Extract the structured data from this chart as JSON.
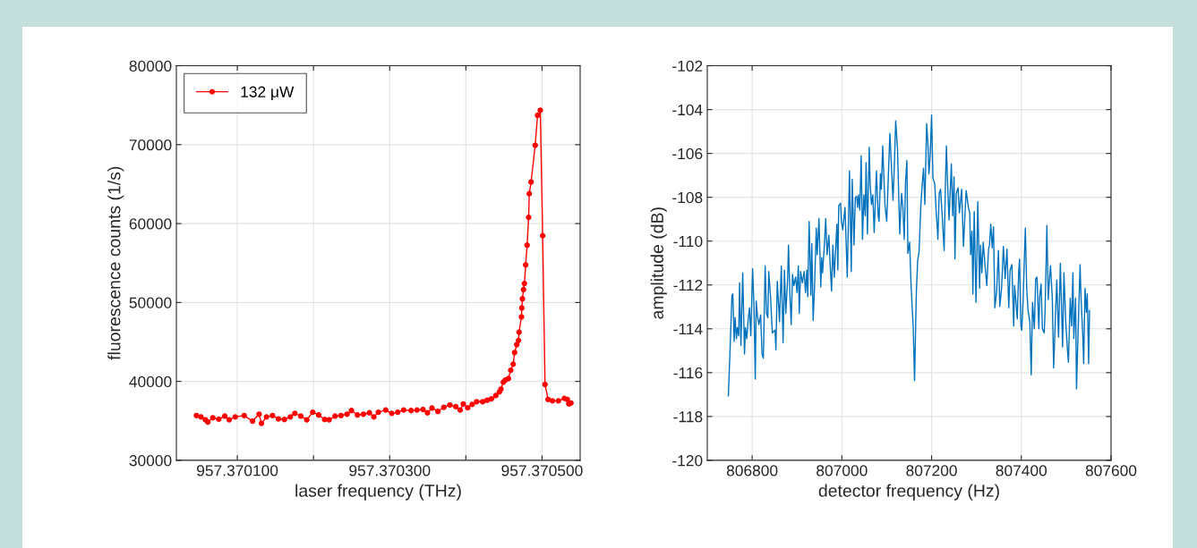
{
  "chart_data": [
    {
      "type": "line",
      "xlabel": "laser frequency (THz)",
      "ylabel": "fluorescence counts (1/s)",
      "xlim": [
        957.37002,
        957.37055
      ],
      "xticks": [
        {
          "value": 957.3701,
          "label": "957.370100"
        },
        {
          "value": 957.3702,
          "label": null
        },
        {
          "value": 957.3703,
          "label": "957.370300"
        },
        {
          "value": 957.3704,
          "label": null
        },
        {
          "value": 957.3705,
          "label": "957.370500"
        }
      ],
      "ylim": [
        30000,
        80000
      ],
      "yticks": [
        30000,
        40000,
        50000,
        60000,
        70000,
        80000
      ],
      "grid": true,
      "legend": "top left",
      "marker": "circle",
      "line_style": "solid",
      "series": [
        {
          "name": "132 μW",
          "color": "#ff0000",
          "x": [
            957.3700464,
            957.3700523,
            957.3700581,
            957.3700613,
            957.3700679,
            957.3700757,
            957.3700836,
            957.3700894,
            957.3700973,
            957.370109,
            957.37012,
            957.3701286,
            957.3701317,
            957.3701383,
            957.3701462,
            957.370154,
            957.3701618,
            957.3701696,
            957.3701755,
            957.3701833,
            957.3701912,
            957.370199,
            957.3702068,
            957.3702146,
            957.3702205,
            957.3702283,
            957.3702361,
            957.370244,
            957.3702498,
            957.3702577,
            957.3702655,
            957.3702733,
            957.3702792,
            957.3702851,
            957.3702948,
            957.3703027,
            957.3703105,
            957.3703183,
            957.3703281,
            957.3703359,
            957.3703437,
            957.3703496,
            957.3703555,
            957.3703633,
            957.3703711,
            957.370379,
            957.3703868,
            957.3703926,
            957.3703966,
            957.3704024,
            957.3704083,
            957.3704142,
            957.370422,
            957.3704279,
            957.3704335,
            957.3704393,
            957.370444,
            957.370446,
            957.3704492,
            957.3704519,
            957.3704558,
            957.3704589,
            957.3704621,
            957.370464,
            957.3704668,
            957.3704691,
            957.3704698,
            957.370473,
            957.3704734,
            957.3704742,
            957.3704757,
            957.3704769,
            957.3704785,
            957.3704804,
            957.3704824,
            957.3704832,
            957.3704856,
            957.370491,
            957.3704941,
            957.3704977,
            957.3705008,
            957.3705039,
            957.3705079,
            957.3705137,
            957.3705215,
            957.3705293,
            957.3705332,
            957.3705352,
            957.3705379
          ],
          "values": [
            35676,
            35496,
            35144,
            34862,
            35391,
            35215,
            35602,
            35144,
            35496,
            35676,
            34968,
            35849,
            34686,
            35496,
            35676,
            35250,
            35179,
            35496,
            35954,
            35602,
            35144,
            36096,
            35743,
            35179,
            35144,
            35602,
            35676,
            35849,
            36307,
            35743,
            35849,
            36025,
            35496,
            36096,
            36377,
            35954,
            36096,
            36377,
            36307,
            36377,
            36448,
            36025,
            36624,
            36201,
            36730,
            37011,
            36800,
            36377,
            37153,
            36659,
            37082,
            37434,
            37434,
            37610,
            37790,
            38213,
            38667,
            39016,
            39904,
            40179,
            40359,
            41416,
            42187,
            43667,
            44661,
            45189,
            46246,
            48180,
            49311,
            50474,
            51637,
            52408,
            54765,
            57271,
            60790,
            63790,
            65271,
            69923,
            73727,
            74362,
            58465,
            39619,
            37716,
            37536,
            37536,
            37853,
            37716,
            37156,
            37262
          ]
        }
      ]
    },
    {
      "type": "line",
      "xlabel": "detector frequency (Hz)",
      "ylabel": "amplitude (dB)",
      "xlim": [
        806700,
        807600
      ],
      "xticks": [
        806800,
        807000,
        807200,
        807400,
        807600
      ],
      "ylim": [
        -120,
        -102
      ],
      "yticks": [
        -120,
        -118,
        -116,
        -114,
        -112,
        -110,
        -108,
        -106,
        -104,
        -102
      ],
      "grid": true,
      "line_style": "solid",
      "series": [
        {
          "color": "#0072bd",
          "x": [
            806747,
            806751,
            806755,
            806757,
            806760,
            806762,
            806765,
            806767,
            806770,
            806772,
            806775,
            806779,
            806783,
            806785,
            806788,
            806791,
            806794,
            806797,
            806801,
            806804,
            806807,
            806809,
            806812,
            806815,
            806819,
            806822,
            806825,
            806829,
            806832,
            806835,
            806837,
            806841,
            806845,
            806851,
            806853,
            806856,
            806859,
            806861,
            806865,
            806869,
            806872,
            806875,
            806879,
            806881,
            806884,
            806887,
            806890,
            806893,
            806897,
            806900,
            806903,
            806905,
            806908,
            806912,
            806916,
            806919,
            806922,
            806924,
            806927,
            806931,
            806933,
            806936,
            806939,
            806943,
            806945,
            806949,
            806953,
            806955,
            806957,
            806961,
            806964,
            806967,
            806971,
            806973,
            806977,
            806980,
            806983,
            806987,
            806989,
            806991,
            806993,
            806997,
            806999,
            807002,
            807007,
            807012,
            807017,
            807021,
            807023,
            807027,
            807030,
            807033,
            807035,
            807037,
            807040,
            807043,
            807046,
            807049,
            807052,
            807054,
            807057,
            807061,
            807063,
            807066,
            807069,
            807072,
            807077,
            807081,
            807083,
            807086,
            807088,
            807091,
            807096,
            807100,
            807103,
            807107,
            807111,
            807114,
            807117,
            807120,
            807124,
            807129,
            807133,
            807136,
            807139,
            807142,
            807145,
            807147,
            807151,
            807154,
            807159,
            807162,
            807166,
            807169,
            807172,
            807176,
            807179,
            807182,
            807185,
            807189,
            807192,
            807194,
            807197,
            807200,
            807203,
            807207,
            807210,
            807213,
            807214,
            807217,
            807220,
            807224,
            807228,
            807231,
            807233,
            807236,
            807239,
            807244,
            807247,
            807250,
            807252,
            807255,
            807259,
            807262,
            807265,
            807267,
            807271,
            807273,
            807277,
            807282,
            807285,
            807287,
            807290,
            807292,
            807295,
            807299,
            807303,
            807307,
            807309,
            807312,
            807315,
            807319,
            807323,
            807327,
            807329,
            807332,
            807335,
            807338,
            807341,
            807345,
            807349,
            807352,
            807356,
            807360,
            807364,
            807368,
            807372,
            807375,
            807379,
            807383,
            807385,
            807388,
            807391,
            807394,
            807396,
            807399,
            807401,
            807404,
            807407,
            807409,
            807412,
            807415,
            807419,
            807422,
            807425,
            807429,
            807432,
            807435,
            807439,
            807441,
            807444,
            807447,
            807451,
            807453,
            807457,
            807460,
            807463,
            807465,
            807469,
            807472,
            807476,
            807479,
            807483,
            807487,
            807489,
            807492,
            807495,
            807499,
            807503,
            807505,
            807509,
            807512,
            807515,
            807517,
            807521,
            807523,
            807527,
            807531,
            807533,
            807537,
            807539,
            807542,
            807545,
            807547,
            807550,
            807552
          ],
          "values": [
            -117.06,
            -114.83,
            -112.47,
            -112.41,
            -114.57,
            -113.49,
            -114.45,
            -113.94,
            -114.32,
            -111.9,
            -114.76,
            -111.45,
            -115.15,
            -113.94,
            -114.45,
            -113.62,
            -113.04,
            -114.32,
            -111.26,
            -112.92,
            -116.29,
            -112.73,
            -113.43,
            -113.81,
            -113.36,
            -115.15,
            -115.34,
            -111.13,
            -113.3,
            -113.49,
            -111.39,
            -112.54,
            -114.19,
            -114.06,
            -114.96,
            -111.83,
            -112.92,
            -113.68,
            -111.13,
            -114.64,
            -111.32,
            -113.3,
            -111.77,
            -110.18,
            -112.34,
            -113.81,
            -111.52,
            -112.03,
            -111.64,
            -112.34,
            -111.13,
            -113.3,
            -111.39,
            -111.9,
            -111.39,
            -112.34,
            -111.32,
            -112.54,
            -109.1,
            -112.47,
            -110.11,
            -113.62,
            -112.15,
            -109.41,
            -110.62,
            -108.97,
            -112.09,
            -110.75,
            -111.45,
            -110.18,
            -108.97,
            -110.62,
            -109.73,
            -110.69,
            -112.28,
            -110.18,
            -111.64,
            -109.99,
            -109.22,
            -111.32,
            -108.39,
            -108.27,
            -109.1,
            -109.48,
            -108.46,
            -111.64,
            -106.8,
            -111.39,
            -107.18,
            -110.18,
            -108.01,
            -107.95,
            -108.46,
            -107.89,
            -108.59,
            -106.1,
            -109.92,
            -107.89,
            -108.84,
            -106.42,
            -109.67,
            -105.72,
            -107.38,
            -108.33,
            -107.89,
            -109.61,
            -106.8,
            -108.84,
            -109.1,
            -106.93,
            -107.63,
            -105.66,
            -108.33,
            -109.1,
            -107.38,
            -105.08,
            -106.8,
            -108.14,
            -106.55,
            -104.51,
            -105.78,
            -109.67,
            -107.82,
            -108.46,
            -109.92,
            -107.25,
            -106.32,
            -110.56,
            -110.05,
            -111.9,
            -113.94,
            -116.36,
            -112.34,
            -110.88,
            -110.5,
            -108.39,
            -107.44,
            -106.68,
            -108.33,
            -104.64,
            -105.66,
            -106.93,
            -106.04,
            -104.25,
            -107.12,
            -107.38,
            -108.59,
            -109.48,
            -109.92,
            -107.82,
            -107.63,
            -108.97,
            -110.43,
            -107.25,
            -105.66,
            -107.57,
            -109.03,
            -106.48,
            -108.84,
            -107.06,
            -110.82,
            -107.82,
            -107.57,
            -108.71,
            -108.08,
            -107.63,
            -110.24,
            -109.41,
            -107.69,
            -108.46,
            -108.71,
            -110.62,
            -109.54,
            -112.41,
            -108.65,
            -112.79,
            -108.2,
            -112.15,
            -110.18,
            -111.45,
            -110.05,
            -111.07,
            -112.03,
            -110.37,
            -110.18,
            -109.22,
            -110.31,
            -109.35,
            -113.04,
            -112.28,
            -110.43,
            -112.98,
            -112.15,
            -110.24,
            -111.71,
            -110.37,
            -113.04,
            -111.32,
            -111.07,
            -113.87,
            -112.03,
            -112.79,
            -113.55,
            -111.45,
            -110.82,
            -113.87,
            -114.06,
            -112.73,
            -110.62,
            -109.41,
            -112.15,
            -113.17,
            -113.68,
            -116.1,
            -112.79,
            -114.0,
            -111.71,
            -111.64,
            -114.0,
            -112.54,
            -111.96,
            -114.0,
            -114.19,
            -113.17,
            -109.29,
            -112.66,
            -111.64,
            -111.13,
            -112.54,
            -115.78,
            -113.49,
            -111.77,
            -114.38,
            -111.01,
            -112.54,
            -114.83,
            -111.45,
            -113.68,
            -115.02,
            -115.53,
            -112.6,
            -113.87,
            -111.45,
            -114.45,
            -112.6,
            -116.74,
            -113.81,
            -111.07,
            -112.54,
            -114.32,
            -115.59,
            -112.15,
            -113.24,
            -112.41,
            -115.59,
            -113.17
          ]
        }
      ]
    }
  ]
}
